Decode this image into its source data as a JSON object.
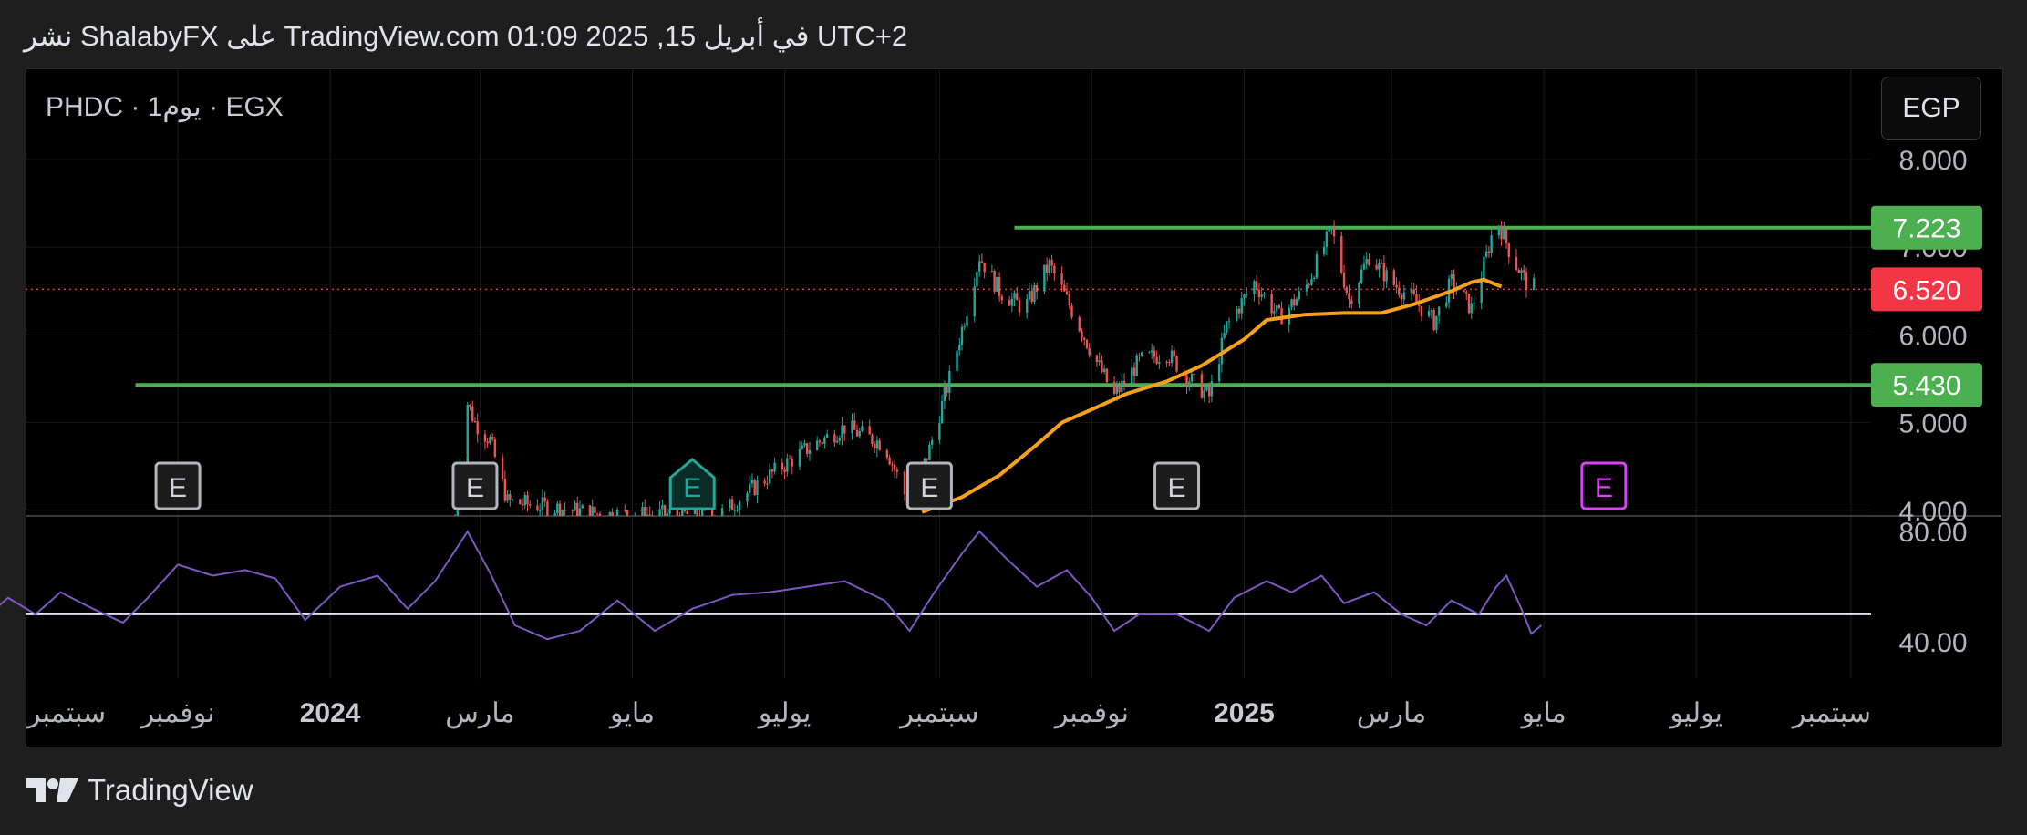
{
  "header": {
    "published_text": "نشر ShalabyFX على TradingView.com في أبريل 15, 2025 01:09 UTC+2"
  },
  "symbol": {
    "label": "PHDC · 1يوم · EGX"
  },
  "currency": {
    "label": "EGP"
  },
  "footer": {
    "brand": "TradingView"
  },
  "colors": {
    "up": "#26a69a",
    "down": "#ef5350",
    "ema": "#f7a11a",
    "level": "#4caf50",
    "rsi": "#7e57c2",
    "price_badge": "#f23645"
  },
  "chart_data": [
    {
      "type": "candlestick",
      "title": "",
      "price_axis": {
        "ticks": [
          "8.000",
          "7.000",
          "6.000",
          "5.000",
          "4.000"
        ],
        "tick_values": [
          8,
          7,
          6,
          5,
          4
        ]
      },
      "time_axis": {
        "labels": [
          "سبتمبر",
          "نوفمبر",
          "2024",
          "مارس",
          "مايو",
          "يوليو",
          "سبتمبر",
          "نوفمبر",
          "2025",
          "مارس",
          "مايو",
          "يوليو",
          "سبتمبر"
        ],
        "label_dates": [
          "2023-09-01",
          "2023-11-01",
          "2024-01-01",
          "2024-03-01",
          "2024-05-01",
          "2024-07-01",
          "2024-09-01",
          "2024-11-01",
          "2025-01-01",
          "2025-03-01",
          "2025-05-01",
          "2025-07-01",
          "2025-09-01"
        ],
        "bold": [
          "2024",
          "2025"
        ]
      },
      "horizontal_levels": [
        {
          "value": 7.223,
          "label": "7.223",
          "from_date": "2024-10-01",
          "color": "#4caf50"
        },
        {
          "value": 5.43,
          "label": "5.430",
          "from_date": "2023-10-15",
          "color": "#4caf50"
        }
      ],
      "last_price": {
        "value": 6.52,
        "label": "6.520"
      },
      "ema": [
        [
          "2024-08-25",
          3.98
        ],
        [
          "2024-09-10",
          4.15
        ],
        [
          "2024-09-25",
          4.4
        ],
        [
          "2024-10-10",
          4.75
        ],
        [
          "2024-10-20",
          5.0
        ],
        [
          "2024-11-01",
          5.15
        ],
        [
          "2024-11-15",
          5.33
        ],
        [
          "2024-12-01",
          5.47
        ],
        [
          "2024-12-15",
          5.65
        ],
        [
          "2025-01-01",
          5.95
        ],
        [
          "2025-01-10",
          6.17
        ],
        [
          "2025-01-25",
          6.23
        ],
        [
          "2025-02-10",
          6.25
        ],
        [
          "2025-02-25",
          6.25
        ],
        [
          "2025-03-10",
          6.35
        ],
        [
          "2025-03-25",
          6.5
        ],
        [
          "2025-04-02",
          6.6
        ],
        [
          "2025-04-07",
          6.63
        ],
        [
          "2025-04-14",
          6.55
        ]
      ],
      "price_path": [
        [
          "2024-02-20",
          3.9
        ],
        [
          "2024-02-24",
          5.3
        ],
        [
          "2024-02-28",
          5.0
        ],
        [
          "2024-03-05",
          4.8
        ],
        [
          "2024-03-12",
          4.1
        ],
        [
          "2024-04-20",
          3.95
        ],
        [
          "2024-06-05",
          3.95
        ],
        [
          "2024-06-25",
          4.4
        ],
        [
          "2024-07-10",
          4.7
        ],
        [
          "2024-07-25",
          4.95
        ],
        [
          "2024-08-10",
          4.75
        ],
        [
          "2024-08-20",
          4.05
        ],
        [
          "2024-08-28",
          4.7
        ],
        [
          "2024-09-05",
          5.5
        ],
        [
          "2024-09-12",
          6.3
        ],
        [
          "2024-09-17",
          6.9
        ],
        [
          "2024-09-25",
          6.5
        ],
        [
          "2024-10-05",
          6.3
        ],
        [
          "2024-10-15",
          6.8
        ],
        [
          "2024-10-22",
          6.4
        ],
        [
          "2024-11-01",
          5.8
        ],
        [
          "2024-11-10",
          5.3
        ],
        [
          "2024-11-20",
          5.7
        ],
        [
          "2024-12-01",
          5.8
        ],
        [
          "2024-12-10",
          5.5
        ],
        [
          "2024-12-18",
          5.3
        ],
        [
          "2024-12-25",
          6.1
        ],
        [
          "2025-01-05",
          6.6
        ],
        [
          "2025-01-15",
          6.2
        ],
        [
          "2025-01-25",
          6.5
        ],
        [
          "2025-02-05",
          7.2
        ],
        [
          "2025-02-12",
          6.4
        ],
        [
          "2025-02-20",
          6.9
        ],
        [
          "2025-03-01",
          6.6
        ],
        [
          "2025-03-10",
          6.4
        ],
        [
          "2025-03-18",
          6.15
        ],
        [
          "2025-03-25",
          6.6
        ],
        [
          "2025-04-02",
          6.3
        ],
        [
          "2025-04-08",
          6.9
        ],
        [
          "2025-04-12",
          7.35
        ],
        [
          "2025-04-18",
          6.9
        ],
        [
          "2025-04-24",
          6.6
        ],
        [
          "2025-04-28",
          6.52
        ]
      ],
      "earnings_markers": [
        {
          "date": "2023-11-01",
          "label": "E",
          "style": "past"
        },
        {
          "date": "2024-02-28",
          "label": "E",
          "style": "past"
        },
        {
          "date": "2024-05-25",
          "label": "E",
          "style": "dividend"
        },
        {
          "date": "2024-08-28",
          "label": "E",
          "style": "past"
        },
        {
          "date": "2024-12-05",
          "label": "E",
          "style": "past"
        },
        {
          "date": "2025-05-25",
          "label": "E",
          "style": "upcoming"
        }
      ]
    },
    {
      "type": "line",
      "title": "",
      "y_axis": {
        "ticks": [
          "80.00",
          "40.00"
        ],
        "tick_values": [
          80,
          40
        ]
      },
      "reference_line": 50,
      "rsi": [
        [
          "2023-08-15",
          48
        ],
        [
          "2023-08-25",
          56
        ],
        [
          "2023-09-05",
          50
        ],
        [
          "2023-09-15",
          58
        ],
        [
          "2023-09-28",
          52
        ],
        [
          "2023-10-10",
          47
        ],
        [
          "2023-10-20",
          56
        ],
        [
          "2023-11-01",
          68
        ],
        [
          "2023-11-15",
          64
        ],
        [
          "2023-11-28",
          66
        ],
        [
          "2023-12-10",
          63
        ],
        [
          "2023-12-22",
          48
        ],
        [
          "2024-01-05",
          60
        ],
        [
          "2024-01-20",
          64
        ],
        [
          "2024-02-01",
          52
        ],
        [
          "2024-02-12",
          62
        ],
        [
          "2024-02-25",
          80
        ],
        [
          "2024-03-05",
          65
        ],
        [
          "2024-03-15",
          46
        ],
        [
          "2024-03-28",
          41
        ],
        [
          "2024-04-10",
          44
        ],
        [
          "2024-04-25",
          55
        ],
        [
          "2024-05-10",
          44
        ],
        [
          "2024-05-25",
          52
        ],
        [
          "2024-06-10",
          57
        ],
        [
          "2024-06-25",
          58
        ],
        [
          "2024-07-10",
          60
        ],
        [
          "2024-07-25",
          62
        ],
        [
          "2024-08-10",
          55
        ],
        [
          "2024-08-20",
          44
        ],
        [
          "2024-08-30",
          58
        ],
        [
          "2024-09-10",
          72
        ],
        [
          "2024-09-17",
          80
        ],
        [
          "2024-09-28",
          70
        ],
        [
          "2024-10-10",
          60
        ],
        [
          "2024-10-22",
          66
        ],
        [
          "2024-11-01",
          56
        ],
        [
          "2024-11-10",
          44
        ],
        [
          "2024-11-20",
          50
        ],
        [
          "2024-12-05",
          50
        ],
        [
          "2024-12-18",
          44
        ],
        [
          "2024-12-28",
          56
        ],
        [
          "2025-01-10",
          62
        ],
        [
          "2025-01-20",
          58
        ],
        [
          "2025-02-01",
          64
        ],
        [
          "2025-02-10",
          54
        ],
        [
          "2025-02-22",
          58
        ],
        [
          "2025-03-05",
          50
        ],
        [
          "2025-03-15",
          46
        ],
        [
          "2025-03-25",
          55
        ],
        [
          "2025-04-05",
          50
        ],
        [
          "2025-04-12",
          60
        ],
        [
          "2025-04-16",
          64
        ],
        [
          "2025-04-22",
          52
        ],
        [
          "2025-04-26",
          43
        ],
        [
          "2025-04-30",
          46
        ]
      ]
    }
  ]
}
